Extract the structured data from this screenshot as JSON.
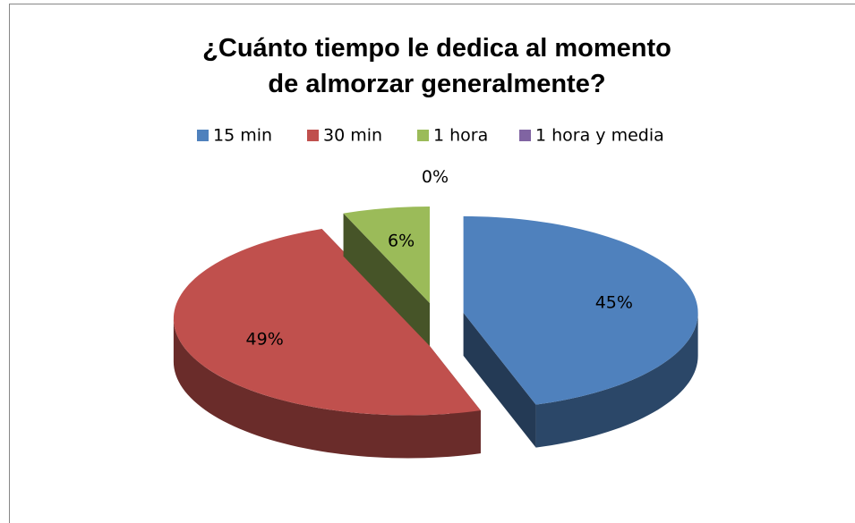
{
  "chart_data": {
    "type": "pie",
    "title": "¿Cuánto tiempo le dedica al momento de almorzar generalmente?",
    "categories": [
      "15 min",
      "30 min",
      "1 hora",
      "1 hora y media"
    ],
    "values": [
      45,
      49,
      6,
      0
    ],
    "value_labels": [
      "45%",
      "49%",
      "6%",
      "0%"
    ],
    "colors": [
      "#4f81bd",
      "#c0504d",
      "#9bbb59",
      "#8064a2"
    ],
    "legend": "top"
  }
}
